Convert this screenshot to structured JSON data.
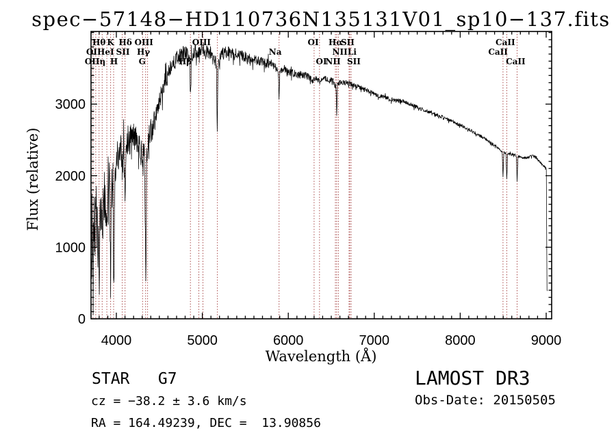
{
  "chart_data": {
    "type": "line",
    "title": "spec−57148−HD110736N135131V01_sp10−137.fits",
    "xlabel": "Wavelength (Å)",
    "ylabel": "Flux (relative)",
    "xlim": [
      3705,
      9064
    ],
    "ylim": [
      0,
      4015
    ],
    "x_major_ticks": [
      4000,
      5000,
      6000,
      7000,
      8000,
      9000
    ],
    "x_minor_step": 100,
    "y_major_ticks": [
      0,
      1000,
      2000,
      3000
    ],
    "y_minor_step": 100,
    "grid": false,
    "legend": false,
    "spectrum_color": "#000000",
    "axis_color": "#000000",
    "marker_line_color": "#9e3232",
    "noise_seed": 42,
    "spectral_lines": [
      {
        "label": "OI",
        "row": 2,
        "wavelength": 3727,
        "label_at": 3712
      },
      {
        "label": "OII",
        "row": 3,
        "wavelength": 3760,
        "label_at": 3718
      },
      {
        "label": "Hθ",
        "row": 1,
        "wavelength": 3798
      },
      {
        "label": "η",
        "row": 3,
        "wavelength": 3835,
        "label_at": 3838
      },
      {
        "label": "HeI",
        "row": 2,
        "wavelength": 3889,
        "label_at": 3875
      },
      {
        "label": "K",
        "row": 1,
        "wavelength": 3933
      },
      {
        "label": "H",
        "row": 3,
        "wavelength": 3968,
        "label_at": 3972
      },
      {
        "label": "SII",
        "row": 2,
        "wavelength": 4068,
        "label_at": 4075
      },
      {
        "label": "Hδ",
        "row": 1,
        "wavelength": 4101,
        "label_at": 4105
      },
      {
        "label": "G",
        "row": 3,
        "wavelength": 4305,
        "label_at": 4300
      },
      {
        "label": "Hγ",
        "row": 2,
        "wavelength": 4340,
        "label_at": 4315
      },
      {
        "label": "OIII",
        "row": 1,
        "wavelength": 4363,
        "label_at": 4320
      },
      {
        "label": "Hβ",
        "row": 3,
        "wavelength": 4861,
        "label_at": 4800
      },
      {
        "label": "OIII",
        "row": 1,
        "wavelength": 4959,
        "label_at": 4990
      },
      {
        "label": "",
        "row": 1,
        "wavelength": 5007
      },
      {
        "label": "",
        "row": 2,
        "wavelength": 5175
      },
      {
        "label": "Na",
        "row": 2,
        "wavelength": 5892,
        "label_at": 5848
      },
      {
        "label": "OI",
        "row": 1,
        "wavelength": 6300,
        "label_at": 6290
      },
      {
        "label": "OI",
        "row": 3,
        "wavelength": 6363,
        "label_at": 6385
      },
      {
        "label": "NII",
        "row": 3,
        "wavelength": 6548,
        "label_at": 6520
      },
      {
        "label": "Hα",
        "row": 1,
        "wavelength": 6563,
        "label_at": 6550
      },
      {
        "label": "NII",
        "row": 2,
        "wavelength": 6583,
        "label_at": 6600
      },
      {
        "label": "Li",
        "row": 2,
        "wavelength": 6707,
        "label_at": 6742
      },
      {
        "label": "SII",
        "row": 1,
        "wavelength": 6716,
        "label_at": 6690
      },
      {
        "label": "SII",
        "row": 3,
        "wavelength": 6731,
        "label_at": 6762
      },
      {
        "label": "CaII",
        "row": 2,
        "wavelength": 8498,
        "label_at": 8440
      },
      {
        "label": "CaII",
        "row": 1,
        "wavelength": 8542,
        "label_at": 8525
      },
      {
        "label": "CaII",
        "row": 3,
        "wavelength": 8662,
        "label_at": 8645
      }
    ],
    "spectrum_envelope": [
      [
        3705,
        600,
        600
      ],
      [
        3712,
        900,
        650
      ],
      [
        3727,
        700,
        500
      ],
      [
        3742,
        1250,
        500
      ],
      [
        3760,
        1450,
        480
      ],
      [
        3778,
        1300,
        430
      ],
      [
        3798,
        750,
        380
      ],
      [
        3812,
        1500,
        400
      ],
      [
        3826,
        1650,
        380
      ],
      [
        3836,
        1050,
        350
      ],
      [
        3850,
        1750,
        400
      ],
      [
        3870,
        1620,
        360
      ],
      [
        3889,
        1250,
        320
      ],
      [
        3904,
        1950,
        350
      ],
      [
        3920,
        1850,
        320
      ],
      [
        3933,
        850,
        280
      ],
      [
        3947,
        1950,
        320
      ],
      [
        3960,
        1550,
        300
      ],
      [
        3970,
        450,
        260
      ],
      [
        3984,
        2150,
        300
      ],
      [
        4005,
        2250,
        280
      ],
      [
        4035,
        2330,
        260
      ],
      [
        4060,
        2330,
        250
      ],
      [
        4068,
        2050,
        230
      ],
      [
        4084,
        2480,
        230
      ],
      [
        4101,
        1550,
        260
      ],
      [
        4116,
        2430,
        230
      ],
      [
        4145,
        2520,
        210
      ],
      [
        4185,
        2560,
        190
      ],
      [
        4225,
        2510,
        190
      ],
      [
        4265,
        2450,
        190
      ],
      [
        4295,
        2280,
        190
      ],
      [
        4307,
        2050,
        180
      ],
      [
        4322,
        2480,
        180
      ],
      [
        4334,
        1500,
        200
      ],
      [
        4342,
        480,
        160
      ],
      [
        4352,
        2250,
        190
      ],
      [
        4378,
        2560,
        180
      ],
      [
        4420,
        2660,
        175
      ],
      [
        4462,
        2820,
        170
      ],
      [
        4502,
        3010,
        160
      ],
      [
        4542,
        3210,
        150
      ],
      [
        4582,
        3360,
        140
      ],
      [
        4622,
        3460,
        130
      ],
      [
        4662,
        3560,
        120
      ],
      [
        4702,
        3630,
        115
      ],
      [
        4742,
        3670,
        110
      ],
      [
        4782,
        3710,
        105
      ],
      [
        4822,
        3730,
        100
      ],
      [
        4853,
        3600,
        95
      ],
      [
        4862,
        3060,
        70
      ],
      [
        4872,
        3640,
        95
      ],
      [
        4912,
        3750,
        95
      ],
      [
        4952,
        3730,
        95
      ],
      [
        4992,
        3770,
        95
      ],
      [
        5032,
        3750,
        95
      ],
      [
        5072,
        3730,
        95
      ],
      [
        5112,
        3710,
        92
      ],
      [
        5152,
        3610,
        88
      ],
      [
        5165,
        3550,
        80
      ],
      [
        5173,
        2590,
        60
      ],
      [
        5182,
        3520,
        80
      ],
      [
        5212,
        3660,
        88
      ],
      [
        5252,
        3710,
        88
      ],
      [
        5302,
        3720,
        85
      ],
      [
        5352,
        3700,
        82
      ],
      [
        5402,
        3690,
        80
      ],
      [
        5452,
        3680,
        78
      ],
      [
        5502,
        3660,
        76
      ],
      [
        5552,
        3640,
        74
      ],
      [
        5602,
        3620,
        72
      ],
      [
        5652,
        3600,
        70
      ],
      [
        5702,
        3590,
        68
      ],
      [
        5752,
        3570,
        66
      ],
      [
        5802,
        3560,
        64
      ],
      [
        5842,
        3540,
        62
      ],
      [
        5884,
        3430,
        52
      ],
      [
        5892,
        3080,
        42
      ],
      [
        5901,
        3440,
        52
      ],
      [
        5942,
        3480,
        58
      ],
      [
        5982,
        3460,
        56
      ],
      [
        6022,
        3450,
        54
      ],
      [
        6062,
        3430,
        52
      ],
      [
        6102,
        3420,
        50
      ],
      [
        6152,
        3410,
        48
      ],
      [
        6202,
        3400,
        46
      ],
      [
        6252,
        3370,
        45
      ],
      [
        6282,
        3300,
        42
      ],
      [
        6302,
        3350,
        42
      ],
      [
        6342,
        3350,
        42
      ],
      [
        6363,
        3310,
        40
      ],
      [
        6402,
        3350,
        40
      ],
      [
        6442,
        3355,
        39
      ],
      [
        6482,
        3340,
        38
      ],
      [
        6522,
        3330,
        38
      ],
      [
        6556,
        3240,
        35
      ],
      [
        6563,
        2830,
        25
      ],
      [
        6572,
        3270,
        35
      ],
      [
        6612,
        3310,
        38
      ],
      [
        6662,
        3300,
        37
      ],
      [
        6712,
        3290,
        36
      ],
      [
        6762,
        3260,
        35
      ],
      [
        6812,
        3240,
        34
      ],
      [
        6862,
        3220,
        33
      ],
      [
        6912,
        3190,
        33
      ],
      [
        6962,
        3160,
        32
      ],
      [
        7012,
        3140,
        32
      ],
      [
        7072,
        3110,
        31
      ],
      [
        7132,
        3090,
        31
      ],
      [
        7192,
        3070,
        30
      ],
      [
        7252,
        3050,
        30
      ],
      [
        7312,
        3050,
        29
      ],
      [
        7372,
        3030,
        29
      ],
      [
        7432,
        2990,
        28
      ],
      [
        7492,
        2960,
        28
      ],
      [
        7552,
        2930,
        27
      ],
      [
        7612,
        2900,
        27
      ],
      [
        7672,
        2870,
        26
      ],
      [
        7732,
        2850,
        26
      ],
      [
        7792,
        2820,
        25
      ],
      [
        7852,
        2790,
        25
      ],
      [
        7912,
        2760,
        24
      ],
      [
        7972,
        2720,
        24
      ],
      [
        8032,
        2690,
        24
      ],
      [
        8092,
        2650,
        23
      ],
      [
        8152,
        2610,
        23
      ],
      [
        8212,
        2570,
        22
      ],
      [
        8272,
        2530,
        22
      ],
      [
        8332,
        2480,
        21
      ],
      [
        8392,
        2430,
        21
      ],
      [
        8452,
        2380,
        20
      ],
      [
        8488,
        2330,
        18
      ],
      [
        8498,
        1975,
        14
      ],
      [
        8508,
        2325,
        18
      ],
      [
        8532,
        2315,
        17
      ],
      [
        8542,
        1950,
        13
      ],
      [
        8552,
        2310,
        17
      ],
      [
        8602,
        2300,
        18
      ],
      [
        8652,
        2285,
        16
      ],
      [
        8662,
        1930,
        12
      ],
      [
        8672,
        2270,
        16
      ],
      [
        8712,
        2255,
        18
      ],
      [
        8752,
        2245,
        18
      ],
      [
        8802,
        2265,
        18
      ],
      [
        8842,
        2285,
        18
      ],
      [
        8882,
        2255,
        18
      ],
      [
        8922,
        2195,
        18
      ],
      [
        8962,
        2145,
        17
      ],
      [
        8992,
        2115,
        15
      ],
      [
        9002,
        2085,
        12
      ],
      [
        9006,
        1200,
        30
      ],
      [
        9010,
        430,
        35
      ],
      [
        9014,
        390,
        25
      ]
    ]
  },
  "annotations": {
    "classification": "STAR   G7",
    "cz": "cz = −38.2 ± 3.6 km/s",
    "radec": "RA = 164.49239, DEC =  13.90856",
    "survey": "LAMOST DR3",
    "obs_date": "Obs-Date: 20150505"
  }
}
